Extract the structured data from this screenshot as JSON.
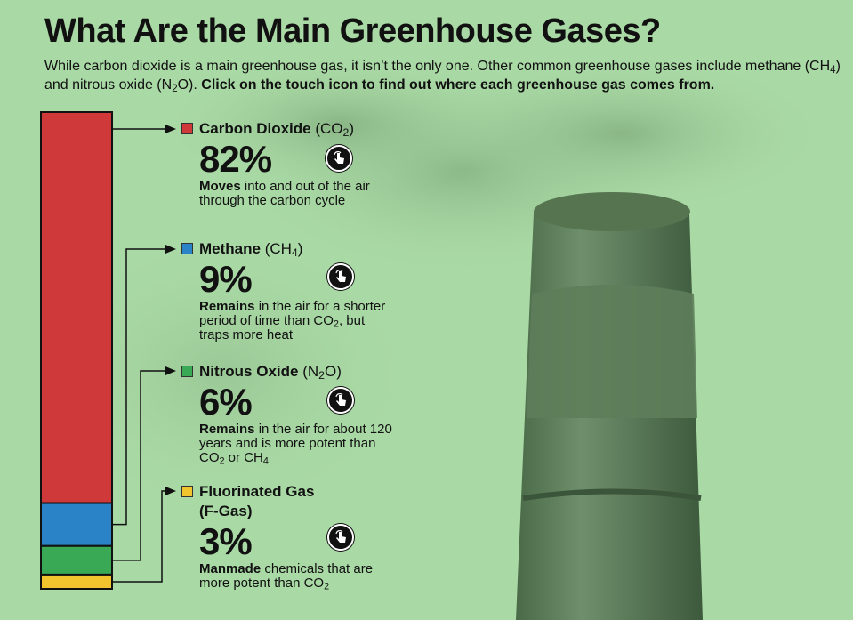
{
  "title": "What Are the Main Greenhouse Gases?",
  "intro": {
    "part1": "While carbon dioxide is a main greenhouse gas, it isn’t the only one. Other common greenhouse gases include methane (CH",
    "sub1": "4",
    "part2": ") and nitrous oxide (N",
    "sub2": "2",
    "part3": "O). ",
    "bold": "Click on the touch icon to find out where each greenhouse gas comes from."
  },
  "gases": [
    {
      "name": "Carbon Dioxide",
      "formula_pre": "(CO",
      "formula_sub": "2",
      "formula_post": ")",
      "percent_label": "82%",
      "desc_bold": "Moves",
      "desc_text": " into and out of the air through the carbon cycle",
      "desc_sub": "",
      "desc_tail": "",
      "desc_sub2": "",
      "color": "#d0393a"
    },
    {
      "name": "Methane",
      "formula_pre": "(CH",
      "formula_sub": "4",
      "formula_post": ")",
      "percent_label": "9%",
      "desc_bold": "Remains",
      "desc_text": " in the air for a shorter period of time than CO",
      "desc_sub": "2",
      "desc_tail": ", but traps more heat",
      "desc_sub2": "",
      "color": "#2a82c7"
    },
    {
      "name": "Nitrous Oxide",
      "formula_pre": "(N",
      "formula_sub": "2",
      "formula_post": "O)",
      "percent_label": "6%",
      "desc_bold": "Remains",
      "desc_text": " in the air for about 120 years and is more potent than CO",
      "desc_sub": "2",
      "desc_tail": " or CH",
      "desc_sub2": "4",
      "color": "#3aa955"
    },
    {
      "name": "Fluorinated Gas",
      "name2": "(F-Gas)",
      "formula_pre": "",
      "formula_sub": "",
      "formula_post": "",
      "percent_label": "3%",
      "desc_bold": "Manmade",
      "desc_text": " chemicals that are more potent than CO",
      "desc_sub": "2",
      "desc_tail": "",
      "desc_sub2": "",
      "color": "#f2c52e"
    }
  ],
  "chart_data": {
    "type": "bar",
    "stacked": true,
    "orientation": "vertical",
    "categories": [
      "Carbon Dioxide",
      "Methane",
      "Nitrous Oxide",
      "Fluorinated Gas"
    ],
    "values": [
      82,
      9,
      6,
      3
    ],
    "colors": [
      "#d0393a",
      "#2a82c7",
      "#3aa955",
      "#f2c52e"
    ],
    "grid": false,
    "legend": "right"
  },
  "icons": {
    "touch": "touch-icon"
  }
}
